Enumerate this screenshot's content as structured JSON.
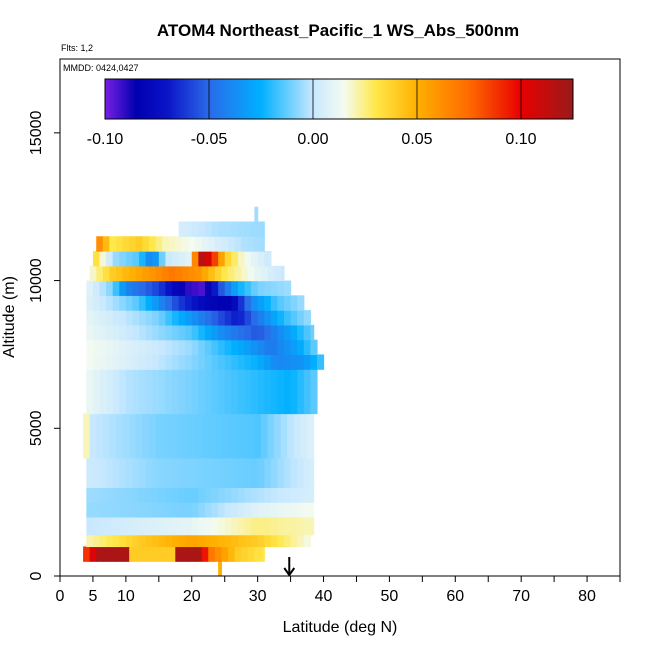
{
  "chart_data": {
    "type": "heatmap",
    "title": "ATOM4 Northeast_Pacific_1 WS_Abs_500nm",
    "flights_note": "Flts: 1,2",
    "date_note": "MMDD: 0424,0427",
    "xlabel": "Latitude (deg N)",
    "ylabel": "Altitude (m)",
    "xlim": [
      0,
      85
    ],
    "ylim": [
      0,
      17500
    ],
    "x_ticks": [
      0,
      5,
      10,
      20,
      30,
      40,
      50,
      60,
      70,
      80
    ],
    "x_minor_ticks": [
      15,
      25,
      35,
      45,
      55,
      65,
      75,
      85
    ],
    "y_ticks": [
      0,
      5000,
      10000,
      15000
    ],
    "grid": false,
    "legend": "top (horizontal colorbar)",
    "colorbar": {
      "min": -0.1,
      "max": 0.125,
      "tick_values": [
        -0.1,
        -0.05,
        0,
        0.05,
        0.1
      ],
      "tick_labels": [
        "-0.10",
        "-0.05",
        "0.00",
        "0.05",
        "0.10"
      ],
      "stops": [
        {
          "value": -0.1,
          "color": "#7a1fe6"
        },
        {
          "value": -0.085,
          "color": "#0000b0"
        },
        {
          "value": -0.07,
          "color": "#0a14c8"
        },
        {
          "value": -0.05,
          "color": "#2a6ae8"
        },
        {
          "value": -0.025,
          "color": "#00b0ff"
        },
        {
          "value": 0.0,
          "color": "#c8e8ff"
        },
        {
          "value": 0.015,
          "color": "#f4fbf0"
        },
        {
          "value": 0.03,
          "color": "#ffe84a"
        },
        {
          "value": 0.05,
          "color": "#ffb000"
        },
        {
          "value": 0.075,
          "color": "#ff6a00"
        },
        {
          "value": 0.1,
          "color": "#e80000"
        },
        {
          "value": 0.125,
          "color": "#9a1a1a"
        }
      ]
    },
    "marker_latitude": 34.8,
    "latitude_columns": {
      "start": 4,
      "end": 39,
      "step": 1
    },
    "altitude_bins": [
      {
        "y0": 0,
        "y1": 500,
        "extent": [
          24,
          24.5
        ],
        "value": 0.05
      },
      {
        "y0": 500,
        "y1": 1000,
        "extent": [
          3.5,
          31
        ],
        "knots": [
          [
            3.5,
            0.08
          ],
          [
            6,
            0.12
          ],
          [
            10,
            0.12
          ],
          [
            11,
            0.04
          ],
          [
            17,
            0.04
          ],
          [
            18,
            0.12
          ],
          [
            21,
            0.12
          ],
          [
            23,
            0.07
          ],
          [
            27,
            0.04
          ],
          [
            31,
            0.03
          ]
        ]
      },
      {
        "y0": 1000,
        "y1": 1400,
        "extent": [
          4,
          38
        ],
        "knots": [
          [
            4,
            0.02
          ],
          [
            12,
            0.04
          ],
          [
            20,
            0.055
          ],
          [
            30,
            0.04
          ],
          [
            38,
            0.015
          ]
        ]
      },
      {
        "y0": 1400,
        "y1": 2000,
        "extent": [
          4,
          38.5
        ],
        "knots": [
          [
            4,
            0.0
          ],
          [
            20,
            0.01
          ],
          [
            30,
            0.025
          ],
          [
            38.5,
            0.02
          ]
        ]
      },
      {
        "y0": 2000,
        "y1": 2500,
        "extent": [
          4,
          38.5
        ],
        "knots": [
          [
            4,
            -0.006
          ],
          [
            20,
            -0.01
          ],
          [
            30,
            0.008
          ],
          [
            38.5,
            0.015
          ]
        ]
      },
      {
        "y0": 2500,
        "y1": 3000,
        "extent": [
          4,
          38.5
        ],
        "knots": [
          [
            4,
            -0.005
          ],
          [
            20,
            -0.012
          ],
          [
            38.5,
            0.005
          ]
        ]
      },
      {
        "y0": 3000,
        "y1": 4000,
        "extent": [
          4,
          38.5
        ],
        "knots": [
          [
            4,
            0.002
          ],
          [
            15,
            -0.008
          ],
          [
            30,
            -0.012
          ],
          [
            38.5,
            0.005
          ]
        ]
      },
      {
        "y0": 4000,
        "y1": 5500,
        "extent": [
          3.5,
          38.5
        ],
        "knots": [
          [
            3.5,
            0.03
          ],
          [
            5,
            0.0
          ],
          [
            15,
            -0.01
          ],
          [
            30,
            -0.015
          ],
          [
            38.5,
            0.008
          ]
        ]
      },
      {
        "y0": 5500,
        "y1": 7000,
        "extent": [
          4,
          39
        ],
        "knots": [
          [
            4,
            0.012
          ],
          [
            10,
            -0.002
          ],
          [
            20,
            -0.01
          ],
          [
            30,
            -0.02
          ],
          [
            35,
            -0.025
          ],
          [
            39,
            -0.012
          ]
        ]
      },
      {
        "y0": 7000,
        "y1": 7500,
        "extent": [
          4,
          40
        ],
        "knots": [
          [
            4,
            0.015
          ],
          [
            20,
            -0.008
          ],
          [
            30,
            -0.025
          ],
          [
            33,
            -0.04
          ],
          [
            37,
            -0.035
          ],
          [
            40,
            -0.015
          ]
        ]
      },
      {
        "y0": 7500,
        "y1": 8000,
        "extent": [
          4,
          39
        ],
        "knots": [
          [
            4,
            0.015
          ],
          [
            20,
            -0.006
          ],
          [
            28,
            -0.03
          ],
          [
            32,
            -0.045
          ],
          [
            36,
            -0.03
          ],
          [
            39,
            -0.01
          ]
        ]
      },
      {
        "y0": 8000,
        "y1": 8500,
        "extent": [
          4,
          38.5
        ],
        "knots": [
          [
            4,
            0.012
          ],
          [
            20,
            -0.015
          ],
          [
            25,
            -0.04
          ],
          [
            30,
            -0.055
          ],
          [
            34,
            -0.035
          ],
          [
            38.5,
            -0.01
          ]
        ]
      },
      {
        "y0": 8500,
        "y1": 9000,
        "extent": [
          4,
          38
        ],
        "knots": [
          [
            4,
            0.01
          ],
          [
            15,
            -0.01
          ],
          [
            22,
            -0.045
          ],
          [
            27,
            -0.07
          ],
          [
            30,
            -0.045
          ],
          [
            34,
            -0.02
          ],
          [
            38,
            -0.005
          ]
        ]
      },
      {
        "y0": 9000,
        "y1": 9500,
        "extent": [
          4,
          37
        ],
        "knots": [
          [
            4,
            0.008
          ],
          [
            12,
            -0.015
          ],
          [
            18,
            -0.06
          ],
          [
            22,
            -0.08
          ],
          [
            26,
            -0.085
          ],
          [
            29,
            -0.04
          ],
          [
            33,
            -0.015
          ],
          [
            37,
            -0.005
          ]
        ]
      },
      {
        "y0": 9500,
        "y1": 10000,
        "extent": [
          4,
          35
        ],
        "knots": [
          [
            4,
            0.01
          ],
          [
            8,
            -0.01
          ],
          [
            10,
            -0.04
          ],
          [
            15,
            -0.06
          ],
          [
            19,
            -0.09
          ],
          [
            22,
            -0.095
          ],
          [
            24,
            -0.06
          ],
          [
            27,
            -0.025
          ],
          [
            30,
            -0.01
          ],
          [
            35,
            -0.005
          ]
        ]
      },
      {
        "y0": 10000,
        "y1": 10500,
        "extent": [
          4.5,
          34
        ],
        "knots": [
          [
            4.5,
            0.015
          ],
          [
            8,
            0.04
          ],
          [
            11,
            0.05
          ],
          [
            17,
            0.07
          ],
          [
            21,
            0.06
          ],
          [
            25,
            0.03
          ],
          [
            30,
            0.01
          ],
          [
            34,
            0.0
          ]
        ]
      },
      {
        "y0": 10500,
        "y1": 11000,
        "extent": [
          5,
          32
        ],
        "knots": [
          [
            5,
            0.04
          ],
          [
            8,
            -0.005
          ],
          [
            12,
            -0.015
          ],
          [
            14,
            -0.045
          ],
          [
            16,
            0.0
          ],
          [
            20,
            0.01
          ],
          [
            21,
            0.12
          ],
          [
            23,
            0.1
          ],
          [
            25,
            0.04
          ],
          [
            28,
            0.015
          ],
          [
            32,
            0.0
          ]
        ]
      },
      {
        "y0": 11000,
        "y1": 11500,
        "extent": [
          5.5,
          31
        ],
        "knots": [
          [
            5.5,
            0.07
          ],
          [
            8,
            0.03
          ],
          [
            12,
            0.04
          ],
          [
            16,
            0.02
          ],
          [
            20,
            0.015
          ],
          [
            24,
            0.005
          ],
          [
            28,
            -0.003
          ],
          [
            31,
            -0.005
          ]
        ]
      },
      {
        "y0": 11500,
        "y1": 12000,
        "extent": [
          18,
          31
        ],
        "knots": [
          [
            18,
            0.005
          ],
          [
            24,
            -0.003
          ],
          [
            31,
            -0.006
          ]
        ]
      },
      {
        "y0": 12000,
        "y1": 12500,
        "extent": [
          29.5,
          30
        ],
        "value": -0.005
      }
    ]
  }
}
